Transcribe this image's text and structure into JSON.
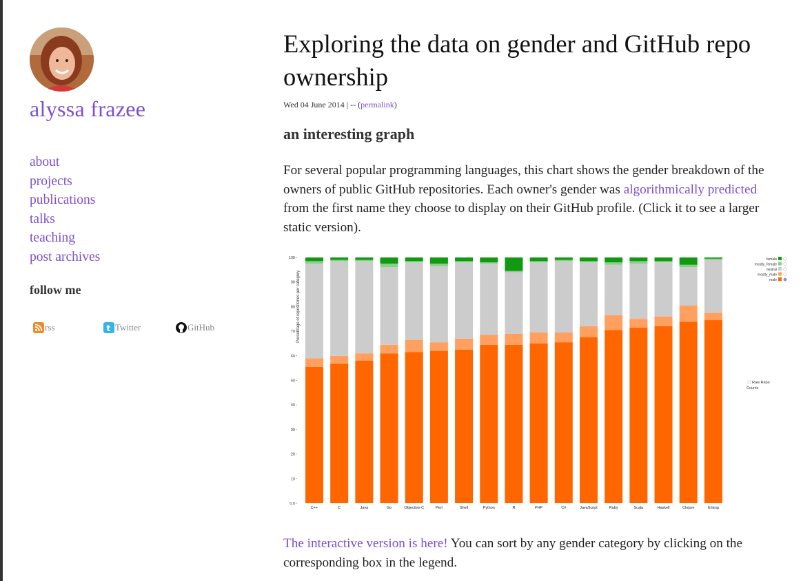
{
  "sidebar": {
    "site_name": "alyssa frazee",
    "nav": [
      "about",
      "projects",
      "publications",
      "talks",
      "teaching",
      "post archives"
    ],
    "follow_heading": "follow me",
    "social": [
      {
        "label": "rss",
        "icon": "rss-icon"
      },
      {
        "label": "Twitter",
        "icon": "twitter-icon"
      },
      {
        "label": "GitHub",
        "icon": "github-icon"
      }
    ]
  },
  "post": {
    "title": "Exploring the data on gender and GitHub repo ownership",
    "date": "Wed 04 June 2014",
    "separator": " | -- (",
    "permalink": "permalink",
    "separator_end": ")",
    "section_heading": "an interesting graph",
    "para1": {
      "before": "For several popular programming languages, this chart shows the gender breakdown of the owners of public GitHub repositories. Each owner's gender was ",
      "link": "algorithmically predicted",
      "after": " from the first name they choose to display on their GitHub profile. (Click it to see a larger static version)."
    },
    "para2": {
      "link": "The interactive version is here!",
      "after": " You can sort by any gender category by clicking on the corresponding box in the legend."
    }
  },
  "chart_data": {
    "type": "bar",
    "stacked": true,
    "ylabel": "Percentage of repositories per category",
    "ylim": [
      0,
      100
    ],
    "yticks": [
      "0.0",
      "10",
      "20",
      "30",
      "40",
      "50",
      "60",
      "70",
      "80",
      "90",
      "100"
    ],
    "categories": [
      "C++",
      "C",
      "Java",
      "Go",
      "Objective-C",
      "Perl",
      "Shell",
      "Python",
      "R",
      "PHP",
      "C#",
      "JavaScript",
      "Ruby",
      "Scala",
      "Haskell",
      "Clojure",
      "Erlang"
    ],
    "series": [
      {
        "name": "male",
        "color": "#ff6600",
        "values": [
          55.5,
          56.8,
          58,
          61,
          61.5,
          62,
          62.5,
          64.5,
          64.5,
          65,
          65.5,
          67.5,
          70.5,
          71.5,
          72,
          73.8,
          74.5
        ]
      },
      {
        "name": "mostly_male",
        "color": "#ffa060",
        "values": [
          3.5,
          3.2,
          3,
          3.5,
          5,
          3.5,
          4.5,
          4,
          4.5,
          4.5,
          4,
          4.5,
          6,
          3.5,
          4,
          6.7,
          3
        ]
      },
      {
        "name": "neutral",
        "color": "#cccccc",
        "values": [
          38.5,
          38.5,
          37.5,
          31.5,
          31.5,
          31,
          31,
          29,
          25,
          28.5,
          29,
          26,
          20.5,
          22.5,
          22,
          15.5,
          21.5
        ]
      },
      {
        "name": "mostly_female",
        "color": "#88d088",
        "values": [
          1,
          0.5,
          0.5,
          1.5,
          0.5,
          1,
          0.5,
          0.5,
          0.5,
          0.5,
          0.5,
          0.5,
          1,
          1,
          0.5,
          1,
          0.5
        ]
      },
      {
        "name": "female",
        "color": "#119911",
        "values": [
          1.5,
          1,
          1,
          2.5,
          1.5,
          2.5,
          1.5,
          2,
          5.5,
          1.5,
          1,
          1.5,
          2,
          1.5,
          1.5,
          3,
          0.5
        ]
      }
    ],
    "legend": [
      "female",
      "mostly_female",
      "neutral",
      "mostly_male",
      "male"
    ],
    "toggle_label": "Raw Repo Counts"
  },
  "colors": {
    "link": "#7b4fd0",
    "male": "#ff6600",
    "female": "#119911"
  }
}
